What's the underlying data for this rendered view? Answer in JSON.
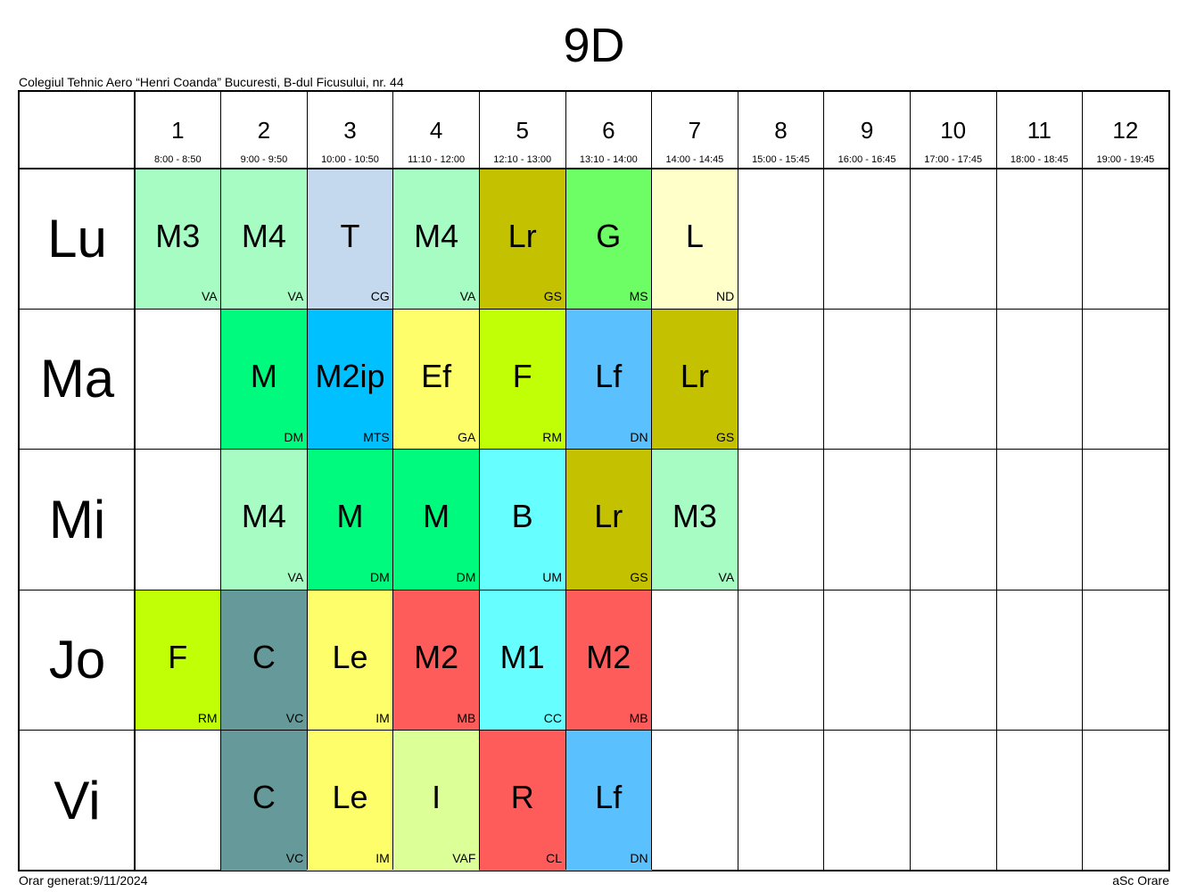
{
  "title": "9D",
  "school": "Colegiul Tehnic Aero “Henri Coanda” Bucuresti, B-dul Ficusului, nr. 44",
  "footer": {
    "generated": "Orar generat:9/11/2024",
    "brand": "aSc Orare"
  },
  "periods": [
    {
      "num": "1",
      "time": "8:00 - 8:50"
    },
    {
      "num": "2",
      "time": "9:00 - 9:50"
    },
    {
      "num": "3",
      "time": "10:00 - 10:50"
    },
    {
      "num": "4",
      "time": "11:10 - 12:00"
    },
    {
      "num": "5",
      "time": "12:10 - 13:00"
    },
    {
      "num": "6",
      "time": "13:10 - 14:00"
    },
    {
      "num": "7",
      "time": "14:00 - 14:45"
    },
    {
      "num": "8",
      "time": "15:00 - 15:45"
    },
    {
      "num": "9",
      "time": "16:00 - 16:45"
    },
    {
      "num": "10",
      "time": "17:00 - 17:45"
    },
    {
      "num": "11",
      "time": "18:00 - 18:45"
    },
    {
      "num": "12",
      "time": "19:00 - 19:45"
    }
  ],
  "days": [
    {
      "name": "Lu",
      "lessons": [
        {
          "period": 1,
          "subject": "M3",
          "teacher": "VA",
          "color": "#a6fcc3"
        },
        {
          "period": 2,
          "subject": "M4",
          "teacher": "VA",
          "color": "#a6fcc3"
        },
        {
          "period": 3,
          "subject": "T",
          "teacher": "CG",
          "color": "#c5d9ee"
        },
        {
          "period": 4,
          "subject": "M4",
          "teacher": "VA",
          "color": "#a6fcc3"
        },
        {
          "period": 5,
          "subject": "Lr",
          "teacher": "GS",
          "color": "#c4c100"
        },
        {
          "period": 6,
          "subject": "G",
          "teacher": "MS",
          "color": "#6dfe66"
        },
        {
          "period": 7,
          "subject": "L",
          "teacher": "ND",
          "color": "#feffc9"
        }
      ]
    },
    {
      "name": "Ma",
      "lessons": [
        {
          "period": 2,
          "subject": "M",
          "teacher": "DM",
          "color": "#00fa7d"
        },
        {
          "period": 3,
          "subject": "M2ip",
          "teacher": "MTS",
          "color": "#00c0ff"
        },
        {
          "period": 4,
          "subject": "Ef",
          "teacher": "GA",
          "color": "#fefe6a"
        },
        {
          "period": 5,
          "subject": "F",
          "teacher": "RM",
          "color": "#c0ff05"
        },
        {
          "period": 6,
          "subject": "Lf",
          "teacher": "DN",
          "color": "#5ac1fe"
        },
        {
          "period": 7,
          "subject": "Lr",
          "teacher": "GS",
          "color": "#c4c100"
        }
      ]
    },
    {
      "name": "Mi",
      "lessons": [
        {
          "period": 2,
          "subject": "M4",
          "teacher": "VA",
          "color": "#a6fcc3"
        },
        {
          "period": 3,
          "subject": "M",
          "teacher": "DM",
          "color": "#00fa7d"
        },
        {
          "period": 4,
          "subject": "M",
          "teacher": "DM",
          "color": "#00fa7d"
        },
        {
          "period": 5,
          "subject": "B",
          "teacher": "UM",
          "color": "#66fefe"
        },
        {
          "period": 6,
          "subject": "Lr",
          "teacher": "GS",
          "color": "#c4c100"
        },
        {
          "period": 7,
          "subject": "M3",
          "teacher": "VA",
          "color": "#a6fcc3"
        }
      ]
    },
    {
      "name": "Jo",
      "lessons": [
        {
          "period": 1,
          "subject": "F",
          "teacher": "RM",
          "color": "#c0ff05"
        },
        {
          "period": 2,
          "subject": "C",
          "teacher": "VC",
          "color": "#669999"
        },
        {
          "period": 3,
          "subject": "Le",
          "teacher": "IM",
          "color": "#fefe6a"
        },
        {
          "period": 4,
          "subject": "M2",
          "teacher": "MB",
          "color": "#fe5b5b"
        },
        {
          "period": 5,
          "subject": "M1",
          "teacher": "CC",
          "color": "#66fefe"
        },
        {
          "period": 6,
          "subject": "M2",
          "teacher": "MB",
          "color": "#fe5b5b"
        }
      ]
    },
    {
      "name": "Vi",
      "lessons": [
        {
          "period": 2,
          "subject": "C",
          "teacher": "VC",
          "color": "#669999"
        },
        {
          "period": 3,
          "subject": "Le",
          "teacher": "IM",
          "color": "#fefe6a"
        },
        {
          "period": 4,
          "subject": "I",
          "teacher": "VAF",
          "color": "#ddff98"
        },
        {
          "period": 5,
          "subject": "R",
          "teacher": "CL",
          "color": "#fe5b5b"
        },
        {
          "period": 6,
          "subject": "Lf",
          "teacher": "DN",
          "color": "#5ac1fe"
        }
      ]
    }
  ]
}
